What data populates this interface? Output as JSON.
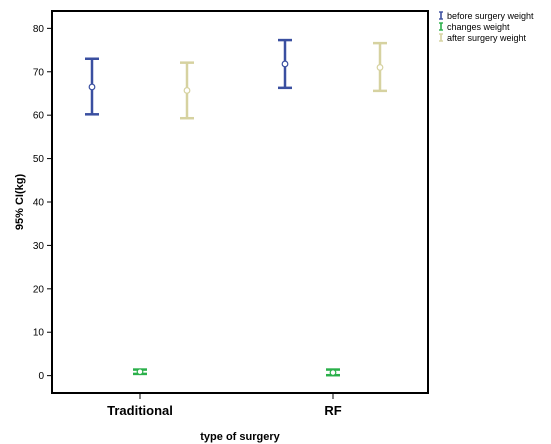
{
  "chart_data": {
    "type": "errorbar",
    "xlabel": "type of surgery",
    "ylabel": "95% CI(kg)",
    "ylim": [
      -4,
      84
    ],
    "yticks": [
      0,
      10,
      20,
      30,
      40,
      50,
      60,
      70,
      80
    ],
    "categories": [
      "Traditional",
      "RF"
    ],
    "legend_position": "top-right, outside plot",
    "grid": false,
    "series": [
      {
        "name": "before surgery weight",
        "color": "#3a4fa0",
        "mean": [
          66.5,
          71.8
        ],
        "lower": [
          60.2,
          66.3
        ],
        "upper": [
          73.0,
          77.3
        ]
      },
      {
        "name": "changes weight",
        "color": "#2ab04a",
        "mean": [
          0.9,
          0.7
        ],
        "lower": [
          0.4,
          0.1
        ],
        "upper": [
          1.4,
          1.4
        ]
      },
      {
        "name": "after surgery weight",
        "color": "#d6d2a0",
        "mean": [
          65.7,
          71.0
        ],
        "lower": [
          59.3,
          65.6
        ],
        "upper": [
          72.1,
          76.6
        ]
      }
    ]
  }
}
